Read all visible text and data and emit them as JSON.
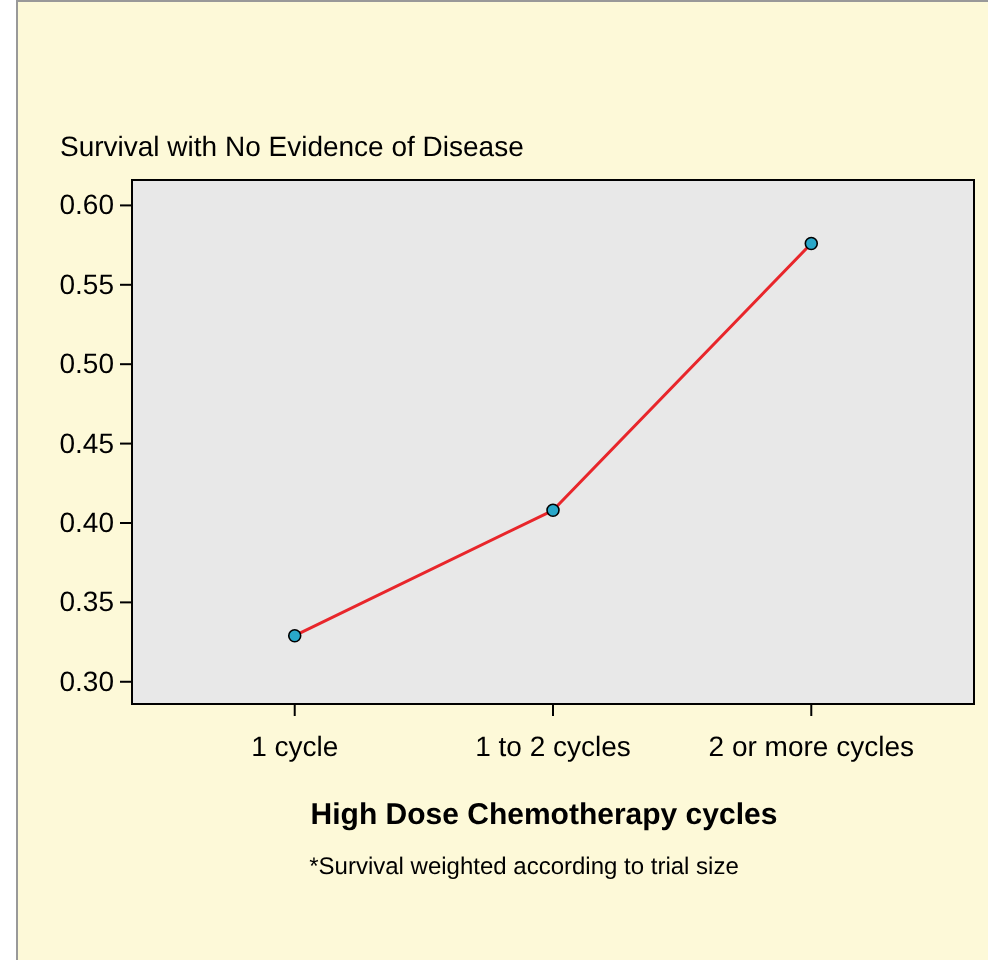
{
  "chart_data": {
    "type": "line",
    "ylabel": "Survival with No Evidence of Disease",
    "xlabel": "High Dose Chemotherapy cycles",
    "annotations": [
      "*Survival weighted according to trial size"
    ],
    "categories": [
      "1 cycle",
      "1 to 2 cycles",
      "2 or more cycles"
    ],
    "series": [
      {
        "color": "#e8262b",
        "values": [
          0.329,
          0.408,
          0.576
        ]
      }
    ],
    "ylim": [
      0.286,
      0.616
    ],
    "yticks": [
      {
        "value": 0.3,
        "label": "0.30"
      },
      {
        "value": 0.35,
        "label": "0.35"
      },
      {
        "value": 0.4,
        "label": "0.40"
      },
      {
        "value": 0.45,
        "label": "0.45"
      },
      {
        "value": 0.5,
        "label": "0.50"
      },
      {
        "value": 0.55,
        "label": "0.55"
      },
      {
        "value": 0.6,
        "label": "0.60"
      }
    ],
    "marker": "circle",
    "grid": false
  }
}
